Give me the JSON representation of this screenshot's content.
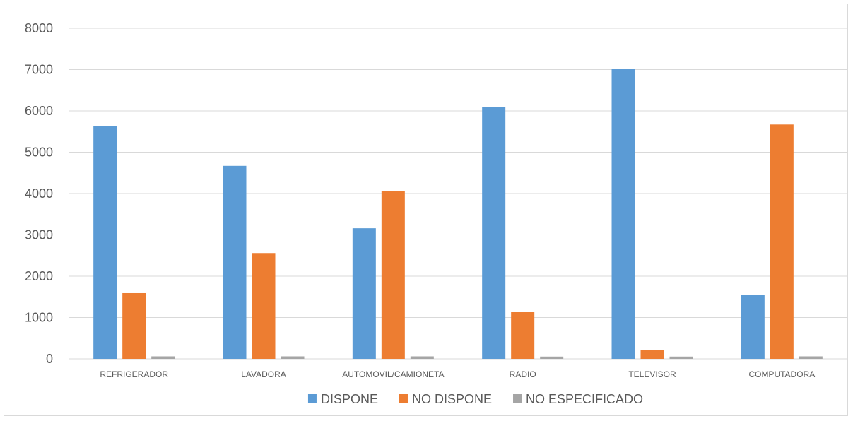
{
  "chart_data": {
    "type": "bar",
    "title": "",
    "xlabel": "",
    "ylabel": "",
    "categories": [
      "REFRIGERADOR",
      "LAVADORA",
      "AUTOMOVIL/CAMIONETA",
      "RADIO",
      "TELEVISOR",
      "COMPUTADORA"
    ],
    "series": [
      {
        "name": "DISPONE",
        "color": "#5b9bd5",
        "values": [
          5640,
          4670,
          3160,
          6090,
          7020,
          1550
        ]
      },
      {
        "name": "NO DISPONE",
        "color": "#ed7d31",
        "values": [
          1590,
          2560,
          4060,
          1130,
          210,
          5670
        ]
      },
      {
        "name": "NO ESPECIFICADO",
        "color": "#a5a5a5",
        "values": [
          60,
          60,
          60,
          55,
          55,
          60
        ]
      }
    ],
    "ylim": [
      0,
      8000
    ],
    "yticks": [
      "0",
      "1000",
      "2000",
      "3000",
      "4000",
      "5000",
      "6000",
      "7000",
      "8000"
    ],
    "grid": true,
    "legend": "bottom"
  }
}
